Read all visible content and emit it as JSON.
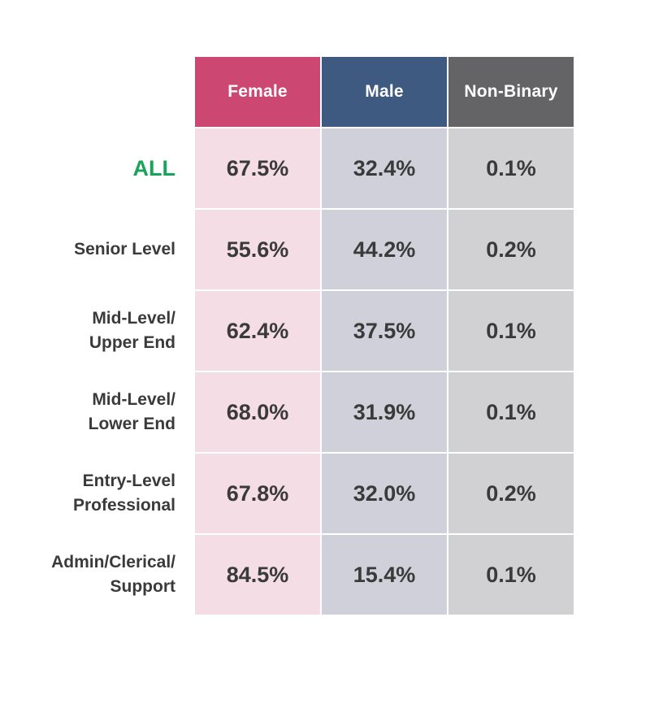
{
  "chart_data": {
    "type": "table",
    "columns": [
      "Female",
      "Male",
      "Non-Binary"
    ],
    "rows": [
      {
        "label": "ALL",
        "values": [
          "67.5%",
          "32.4%",
          "0.1%"
        ]
      },
      {
        "label": "Senior Level",
        "values": [
          "55.6%",
          "44.2%",
          "0.2%"
        ]
      },
      {
        "label": "Mid-Level/\nUpper End",
        "values": [
          "62.4%",
          "37.5%",
          "0.1%"
        ]
      },
      {
        "label": "Mid-Level/\nLower End",
        "values": [
          "68.0%",
          "31.9%",
          "0.1%"
        ]
      },
      {
        "label": "Entry-Level\nProfessional",
        "values": [
          "67.8%",
          "32.0%",
          "0.2%"
        ]
      },
      {
        "label": "Admin/Clerical/\nSupport",
        "values": [
          "84.5%",
          "15.4%",
          "0.1%"
        ]
      }
    ]
  },
  "colors": {
    "female_header": "#cc4872",
    "male_header": "#3e5a80",
    "nonbinary_header": "#646466",
    "female_cell": "#f4dde4",
    "male_cell": "#cfd0d9",
    "nonbinary_cell": "#d1d1d3",
    "all_label": "#1aa35a",
    "text": "#3a3a3a"
  }
}
